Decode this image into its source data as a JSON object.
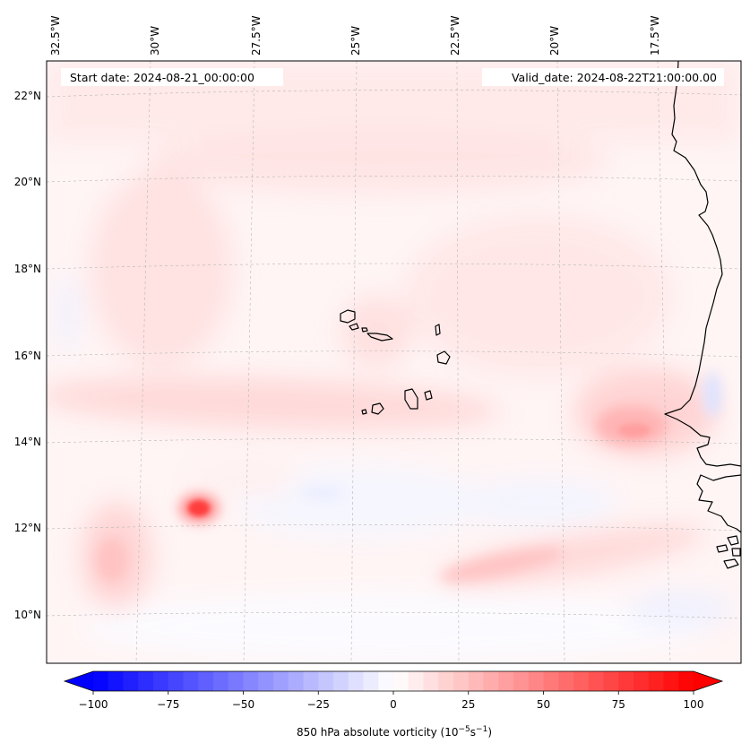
{
  "map": {
    "start_date": "Start date: 2024-08-21_00:00:00",
    "valid_date": "Valid_date: 2024-08-22T21:00:00.00",
    "lon_labels": [
      "32.5°W",
      "30°W",
      "27.5°W",
      "25°W",
      "22.5°W",
      "20°W",
      "17.5°W"
    ],
    "lat_labels": [
      "22°N",
      "20°N",
      "18°N",
      "16°N",
      "14°N",
      "12°N",
      "10°N"
    ],
    "coastline_color": "#000000",
    "gridline_color": "#b0b0b0"
  },
  "colorbar": {
    "label_main": "850 hPa absolute vorticity (10",
    "label_exp1": "−5",
    "label_mid": "s",
    "label_exp2": "−1",
    "label_end": ")",
    "ticks": [
      "−100",
      "−75",
      "−50",
      "−25",
      "0",
      "25",
      "50",
      "75",
      "100"
    ],
    "min": -100,
    "max": 100,
    "step": 5,
    "low_color": "#0000ff",
    "mid_color": "#ffffff",
    "high_color": "#ff0000"
  }
}
